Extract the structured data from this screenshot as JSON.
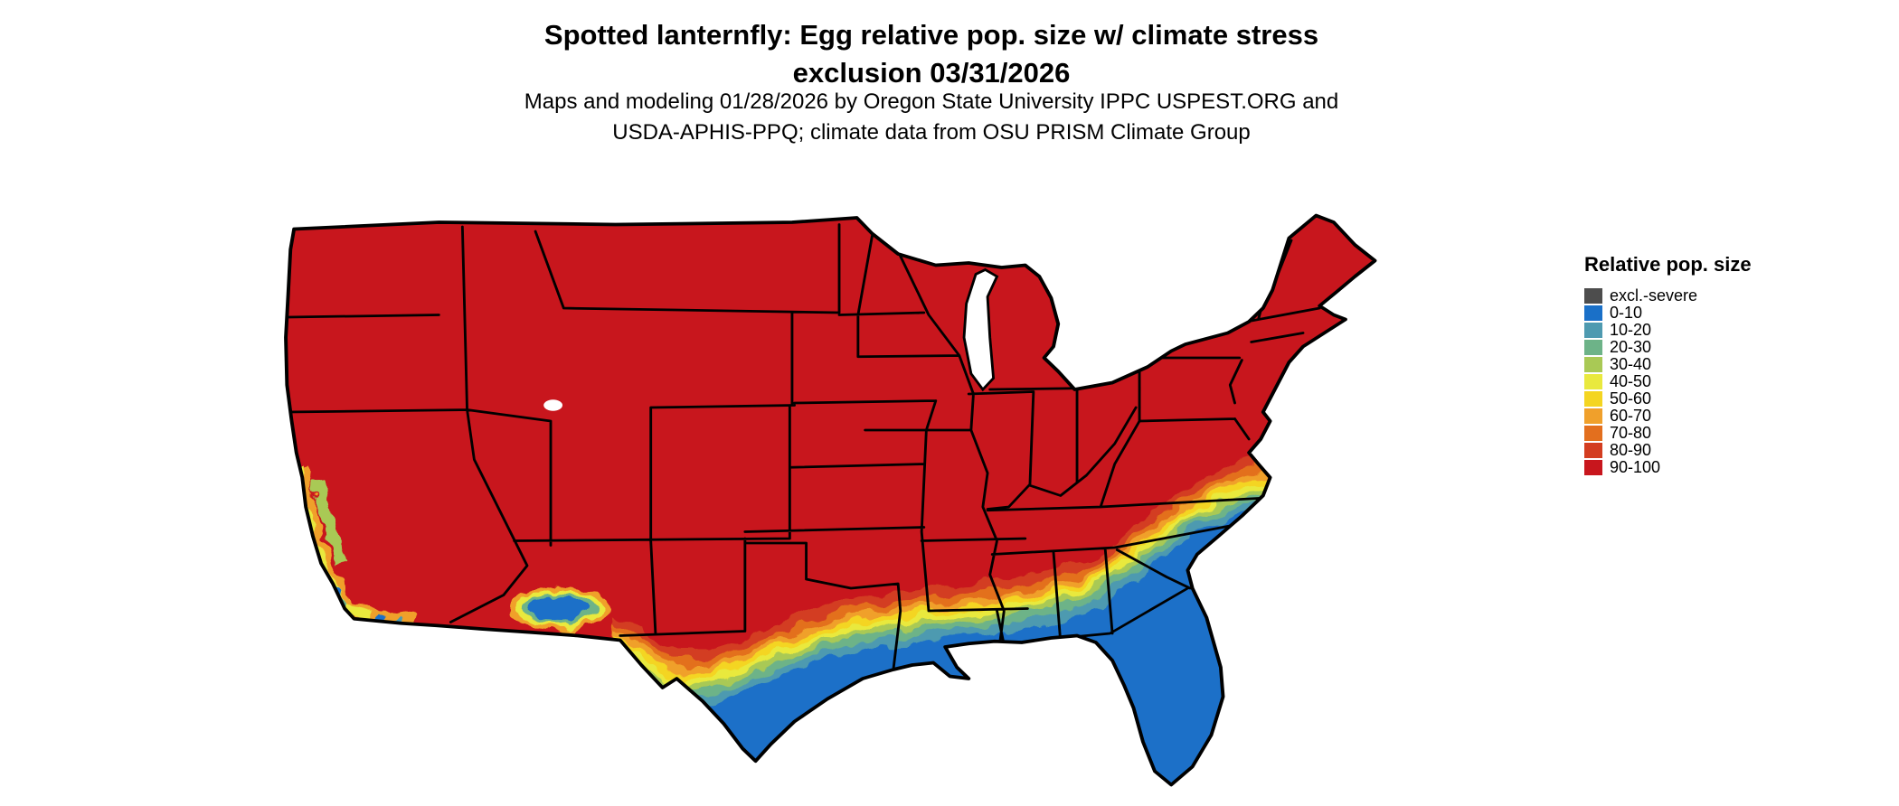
{
  "figure": {
    "title_line1": "Spotted lanternfly: Egg relative pop. size w/ climate stress",
    "title_line2": "exclusion 03/31/2026",
    "subtitle_line1": "Maps and modeling 01/28/2026 by Oregon State University IPPC USPEST.ORG and",
    "subtitle_line2": "USDA-APHIS-PPQ; climate data from OSU PRISM Climate Group"
  },
  "legend": {
    "title": "Relative pop. size",
    "items": [
      {
        "label": "excl.-severe",
        "color": "#4d4d4d"
      },
      {
        "label": "0-10",
        "color": "#1a70c8"
      },
      {
        "label": "10-20",
        "color": "#4e9ab0"
      },
      {
        "label": "20-30",
        "color": "#6db388"
      },
      {
        "label": "30-40",
        "color": "#a9c955"
      },
      {
        "label": "40-50",
        "color": "#e9e93e"
      },
      {
        "label": "50-60",
        "color": "#f4d521"
      },
      {
        "label": "60-70",
        "color": "#f0a02b"
      },
      {
        "label": "70-80",
        "color": "#e36f1e"
      },
      {
        "label": "80-90",
        "color": "#d33d20"
      },
      {
        "label": "90-100",
        "color": "#c8161d"
      }
    ]
  },
  "chart_data": {
    "type": "heatmap",
    "title": "Spotted lanternfly: Egg relative pop. size w/ climate stress exclusion 03/31/2026",
    "legend_title": "Relative pop. size",
    "classes": [
      "excl.-severe",
      "0-10",
      "10-20",
      "20-30",
      "30-40",
      "40-50",
      "50-60",
      "60-70",
      "70-80",
      "80-90",
      "90-100"
    ],
    "geography": "Continental United States with black state boundaries on white background",
    "pattern": [
      {
        "region": "Northern, central, western interior and northeastern US",
        "class": "90-100"
      },
      {
        "region": "Transition band across central Texas, the Deep South and up the Carolinas coast",
        "class": "30-40 through 80-90"
      },
      {
        "region": "Gulf Coast, Florida peninsula, coastal Georgia/South Carolina, south Texas",
        "class": "0-10"
      },
      {
        "region": "Southern Arizona low desert patch",
        "class": "0-10 core with 20-70 fringe"
      },
      {
        "region": "California coast and Central Valley strip",
        "class": "20-30 through 60-70 with 0-10 specks"
      }
    ]
  }
}
